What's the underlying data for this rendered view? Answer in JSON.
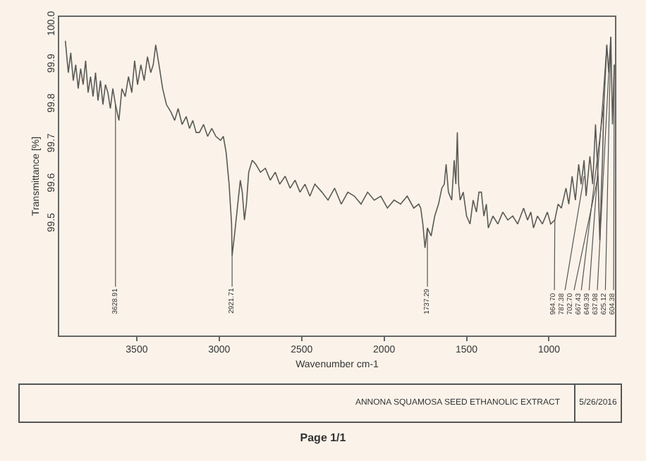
{
  "chart_data": {
    "type": "line",
    "xlabel": "Wavenumber cm-1",
    "ylabel": "Transmittance [%]",
    "x": [
      3933,
      3915,
      3900,
      3885,
      3870,
      3855,
      3840,
      3825,
      3810,
      3795,
      3780,
      3765,
      3750,
      3735,
      3720,
      3705,
      3690,
      3675,
      3660,
      3645,
      3628.91,
      3608,
      3590,
      3570,
      3550,
      3530,
      3513,
      3495,
      3475,
      3455,
      3435,
      3415,
      3400,
      3385,
      3365,
      3343,
      3320,
      3291,
      3270,
      3249,
      3225,
      3200,
      3180,
      3160,
      3140,
      3120,
      3095,
      3070,
      3045,
      3020,
      2992,
      2975,
      2958,
      2940,
      2925,
      2921.71,
      2905,
      2890,
      2872,
      2860,
      2847,
      2835,
      2821,
      2800,
      2778,
      2750,
      2720,
      2690,
      2660,
      2633,
      2600,
      2570,
      2540,
      2510,
      2480,
      2450,
      2420,
      2377,
      2340,
      2300,
      2260,
      2220,
      2180,
      2140,
      2100,
      2060,
      2020,
      1980,
      1940,
      1900,
      1860,
      1820,
      1790,
      1778,
      1765,
      1752,
      1737.29,
      1715,
      1693,
      1670,
      1650,
      1635,
      1624,
      1610,
      1590,
      1575,
      1565,
      1556,
      1548,
      1539,
      1520,
      1500,
      1479,
      1460,
      1440,
      1425,
      1410,
      1395,
      1380,
      1368,
      1340,
      1310,
      1280,
      1250,
      1220,
      1190,
      1154,
      1130,
      1110,
      1094,
      1070,
      1040,
      1010,
      990,
      964.7,
      945,
      925,
      897,
      880,
      860,
      840,
      820,
      805,
      787.38,
      775,
      752,
      735,
      718,
      702.7,
      692,
      683,
      675,
      667.43,
      649.39,
      637.98,
      625.12,
      615,
      604.38
    ],
    "values": [
      99.96,
      99.88,
      99.93,
      99.86,
      99.9,
      99.84,
      99.89,
      99.85,
      99.91,
      99.83,
      99.87,
      99.82,
      99.88,
      99.81,
      99.86,
      99.8,
      99.85,
      99.83,
      99.79,
      99.84,
      99.8,
      99.76,
      99.84,
      99.82,
      99.87,
      99.83,
      99.91,
      99.85,
      99.9,
      99.86,
      99.92,
      99.88,
      99.9,
      99.95,
      99.9,
      99.84,
      99.8,
      99.78,
      99.76,
      99.79,
      99.75,
      99.77,
      99.74,
      99.76,
      99.73,
      99.73,
      99.75,
      99.72,
      99.74,
      99.72,
      99.71,
      99.72,
      99.68,
      99.6,
      99.5,
      99.42,
      99.48,
      99.54,
      99.61,
      99.58,
      99.51,
      99.55,
      99.63,
      99.66,
      99.65,
      99.63,
      99.64,
      99.61,
      99.63,
      99.6,
      99.62,
      99.59,
      99.61,
      99.58,
      99.6,
      99.57,
      99.6,
      99.58,
      99.56,
      99.59,
      99.55,
      99.58,
      99.57,
      99.55,
      99.58,
      99.56,
      99.57,
      99.54,
      99.56,
      99.55,
      99.57,
      99.54,
      99.55,
      99.54,
      99.5,
      99.44,
      99.49,
      99.47,
      99.52,
      99.55,
      99.59,
      99.6,
      99.65,
      99.58,
      99.56,
      99.66,
      99.6,
      99.73,
      99.6,
      99.56,
      99.58,
      99.52,
      99.5,
      99.56,
      99.53,
      99.58,
      99.58,
      99.52,
      99.55,
      99.49,
      99.52,
      99.5,
      99.53,
      99.51,
      99.52,
      99.5,
      99.54,
      99.51,
      99.53,
      99.49,
      99.52,
      99.5,
      99.53,
      99.5,
      99.51,
      99.55,
      99.54,
      99.59,
      99.55,
      99.62,
      99.56,
      99.65,
      99.6,
      99.66,
      99.57,
      99.67,
      99.6,
      99.75,
      99.62,
      99.46,
      99.58,
      99.67,
      99.8,
      99.95,
      99.88,
      99.97,
      99.75,
      99.9
    ],
    "color": "#5a5a55",
    "xlim": [
      3970,
      600
    ],
    "ylim": [
      99.22,
      100.02
    ],
    "xticks": [
      3500,
      3000,
      2500,
      2000,
      1500,
      1000
    ],
    "yticks": [
      {
        "value": 99.5,
        "label": "99.5"
      },
      {
        "value": 99.6,
        "label": "99.6"
      },
      {
        "value": 99.7,
        "label": "99.7"
      },
      {
        "value": 99.8,
        "label": "99.8"
      },
      {
        "value": 99.9,
        "label": "99.9"
      },
      {
        "value": 100,
        "label": "100.0"
      }
    ],
    "grid": false,
    "marker": "none",
    "line_style": "solid",
    "annotations": [
      {
        "text": "3628.91",
        "x": 3628.91,
        "y": 99.8
      },
      {
        "text": "2921.71",
        "x": 2921.71,
        "y": 99.42
      },
      {
        "text": "1737.29",
        "x": 1737.29,
        "y": 99.49
      },
      {
        "text": "964.70",
        "x": 964.7,
        "y": 99.51
      },
      {
        "text": "787.38",
        "x": 787.38,
        "y": 99.62
      },
      {
        "text": "702.70",
        "x": 702.7,
        "y": 99.62
      },
      {
        "text": "667.43",
        "x": 667.43,
        "y": 99.8
      },
      {
        "text": "649.39",
        "x": 649.39,
        "y": 99.95
      },
      {
        "text": "637.98",
        "x": 637.98,
        "y": 99.88
      },
      {
        "text": "625.12",
        "x": 625.12,
        "y": 99.97
      },
      {
        "text": "604.38",
        "x": 604.38,
        "y": 99.9
      },
      "ANNONA SQUAMOSA SEED ETHANOLIC  EXTRACT",
      "5/26/2016",
      "Page 1/1"
    ]
  }
}
